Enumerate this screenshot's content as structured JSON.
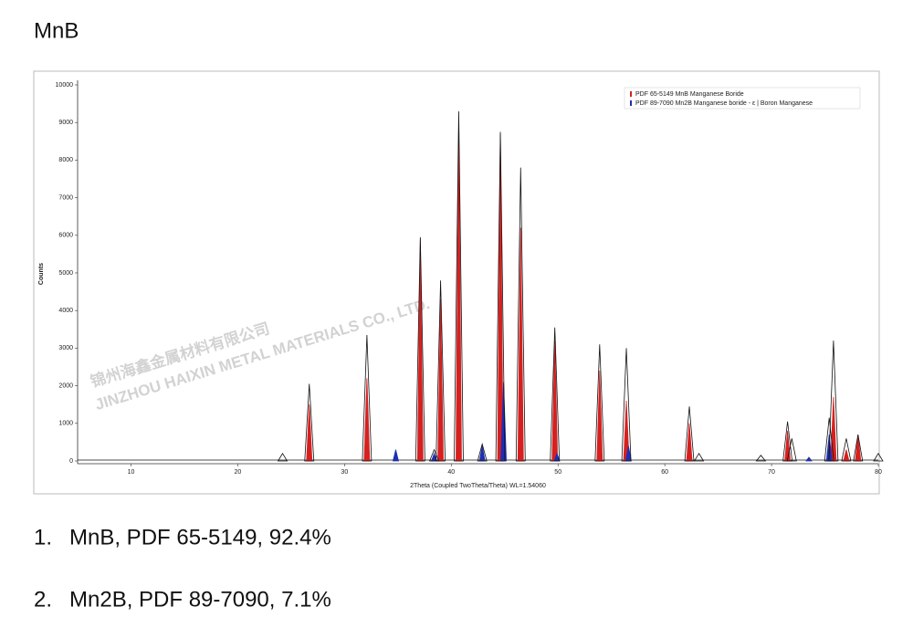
{
  "title": "MnB",
  "chart_data": {
    "type": "xrd",
    "ylabel": "Counts",
    "xlabel": "2Theta (Coupled TwoTheta/Theta) WL=1.54060",
    "xlim": [
      5,
      80
    ],
    "xticks": [
      10,
      20,
      30,
      40,
      50,
      60,
      70,
      80
    ],
    "ylim": [
      0,
      10000
    ],
    "yticks": [
      0,
      1000,
      2000,
      3000,
      4000,
      5000,
      6000,
      7000,
      8000,
      9000,
      10000
    ],
    "legend": "upper right",
    "observed": {
      "color": "#111111",
      "x": [
        24.2,
        26.7,
        32.1,
        37.1,
        38.4,
        39.0,
        40.7,
        42.9,
        44.6,
        46.5,
        49.7,
        53.9,
        56.4,
        62.3,
        63.2,
        69.0,
        71.5,
        71.9,
        75.4,
        75.8,
        77.0,
        78.1,
        80.0
      ],
      "values": [
        200,
        2050,
        3350,
        5950,
        300,
        4800,
        9300,
        450,
        8750,
        7800,
        3550,
        3100,
        3000,
        1450,
        200,
        150,
        1050,
        600,
        1150,
        3200,
        600,
        700,
        200
      ]
    },
    "series": [
      {
        "name": "PDF 65-5149 MnB Manganese Boride",
        "color": "#d62020",
        "x": [
          26.7,
          32.1,
          37.1,
          39.0,
          40.7,
          44.6,
          46.5,
          49.7,
          53.9,
          56.4,
          62.3,
          71.5,
          75.8,
          77.0,
          78.1
        ],
        "values": [
          1500,
          2200,
          5900,
          4300,
          9000,
          8700,
          6200,
          3200,
          2400,
          1600,
          1000,
          800,
          1700,
          300,
          700
        ]
      },
      {
        "name": "PDF 89-7090 Mn2B Manganese boride - ε | Boron Manganese",
        "color": "#1f2fb0",
        "x": [
          34.8,
          38.4,
          42.9,
          44.9,
          49.9,
          56.6,
          73.5,
          75.4
        ],
        "values": [
          300,
          200,
          400,
          2100,
          200,
          400,
          100,
          700
        ]
      }
    ],
    "watermark": [
      "锦州海鑫金属材料有限公司",
      "JINZHOU HAIXIN METAL MATERIALS CO., LTD."
    ]
  },
  "list": [
    {
      "number": "1.",
      "text": "MnB, PDF 65-5149, 92.4%"
    },
    {
      "number": "2.",
      "text": "Mn2B, PDF 89-7090, 7.1%"
    }
  ]
}
